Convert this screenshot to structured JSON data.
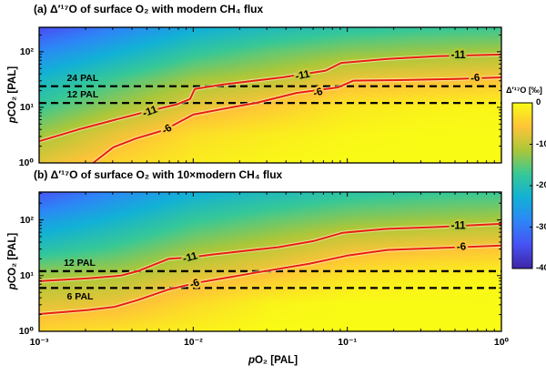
{
  "axis_labels": {
    "x_prefix": "p",
    "x_suffix": "O₂ [PAL]",
    "y_prefix": "p",
    "y_suffix": "CO₂ [PAL]"
  },
  "colors": {
    "contour_red": "#e8200c",
    "contour_halo": "#fff9d9",
    "ref_line_black": "#000000",
    "frame_black": "#000000",
    "background_white": "#ffffff"
  },
  "chart_data": [
    {
      "type": "heatmap",
      "panel_id": "a",
      "title": "(a) Δ′¹⁷O of surface O₂ with modern CH₄ flux",
      "xlabel": "pO₂ [PAL]",
      "ylabel": "pCO₂ [PAL]",
      "x_scale": "log",
      "y_scale": "log",
      "x_range_log10": [
        -3,
        0
      ],
      "y_range_log10": [
        0,
        2.44
      ],
      "x_tick_log10": [
        -3,
        -2,
        -1,
        0
      ],
      "x_tick_labels": [
        "10⁻³",
        "10⁻²",
        "10⁻¹",
        "10⁰"
      ],
      "x_tick_labels_visible": false,
      "y_tick_log10": [
        0,
        1,
        2
      ],
      "y_tick_labels": [
        "10⁰",
        "10¹",
        "10²"
      ],
      "field_grid": {
        "log10_pO2": [
          -3,
          -2.5,
          -2,
          -1.5,
          -1,
          -0.5,
          0
        ],
        "log10_pCO2": [
          0,
          0.5,
          1.0,
          1.5,
          2.0,
          2.44
        ],
        "delta17O_permil": [
          [
            -7.5,
            -4.0,
            -1.5,
            -0.5,
            0,
            0,
            0
          ],
          [
            -12.0,
            -7.0,
            -3.0,
            -1.5,
            -0.5,
            0,
            0
          ],
          [
            -17.0,
            -12.0,
            -7.5,
            -5.0,
            -2.0,
            -1.0,
            -0.5
          ],
          [
            -21.5,
            -16.5,
            -12.0,
            -10.0,
            -7.0,
            -6.3,
            -5.7
          ],
          [
            -28.0,
            -23.0,
            -18.0,
            -15.0,
            -13.0,
            -12.3,
            -11.6
          ],
          [
            -35.0,
            -29.0,
            -23.5,
            -20.5,
            -18.5,
            -17.5,
            -17.0
          ]
        ]
      },
      "contours": [
        {
          "level": -11,
          "label": "-11",
          "points_log10": [
            [
              -3.0,
              0.39
            ],
            [
              -2.72,
              0.62
            ],
            [
              -2.49,
              0.79
            ],
            [
              -2.29,
              0.93
            ],
            [
              -2.11,
              1.05
            ],
            [
              -2.02,
              1.15
            ],
            [
              -1.99,
              1.33
            ],
            [
              -1.81,
              1.41
            ],
            [
              -1.42,
              1.54
            ],
            [
              -1.14,
              1.66
            ],
            [
              -1.04,
              1.8
            ],
            [
              -0.74,
              1.87
            ],
            [
              -0.42,
              1.92
            ],
            [
              0.0,
              1.95
            ]
          ],
          "labels": [
            {
              "lx": -2.28,
              "e": 0.92,
              "rot_deg": -20
            },
            {
              "lx": -1.29,
              "e": 1.57,
              "rot_deg": -12
            },
            {
              "lx": -0.28,
              "e": 1.93,
              "rot_deg": 0
            }
          ]
        },
        {
          "level": -6,
          "label": "-6",
          "points_log10": [
            [
              -2.65,
              0.0
            ],
            [
              -2.52,
              0.28
            ],
            [
              -2.37,
              0.44
            ],
            [
              -2.19,
              0.59
            ],
            [
              -2.0,
              0.87
            ],
            [
              -1.81,
              0.97
            ],
            [
              -1.59,
              1.08
            ],
            [
              -1.33,
              1.26
            ],
            [
              -1.06,
              1.36
            ],
            [
              -0.96,
              1.48
            ],
            [
              -0.66,
              1.49
            ],
            [
              -0.3,
              1.51
            ],
            [
              0.0,
              1.54
            ]
          ],
          "labels": [
            {
              "lx": -2.17,
              "e": 0.6,
              "rot_deg": -30
            },
            {
              "lx": -1.19,
              "e": 1.26,
              "rot_deg": -18
            },
            {
              "lx": -0.17,
              "e": 1.52,
              "rot_deg": -6
            }
          ]
        }
      ],
      "ref_lines": [
        {
          "pCO2_PAL": 24,
          "label": "24 PAL",
          "label_lx": -2.82,
          "label_side": "above"
        },
        {
          "pCO2_PAL": 12,
          "label": "12 PAL",
          "label_lx": -2.82,
          "label_side": "above"
        }
      ]
    },
    {
      "type": "heatmap",
      "panel_id": "b",
      "title": "(b) Δ′¹⁷O of surface O₂ with 10×modern CH₄ flux",
      "xlabel": "pO₂ [PAL]",
      "ylabel": "pCO₂ [PAL]",
      "x_scale": "log",
      "y_scale": "log",
      "x_range_log10": [
        -3,
        0
      ],
      "y_range_log10": [
        0,
        2.5
      ],
      "x_tick_log10": [
        -3,
        -2,
        -1,
        0
      ],
      "x_tick_labels": [
        "10⁻³",
        "10⁻²",
        "10⁻¹",
        "10⁰"
      ],
      "x_tick_labels_visible": true,
      "y_tick_log10": [
        0,
        1,
        2
      ],
      "y_tick_labels": [
        "10⁰",
        "10¹",
        "10²"
      ],
      "field_grid": {
        "log10_pO2": [
          -3,
          -2.5,
          -2,
          -1.5,
          -1,
          -0.5,
          0
        ],
        "log10_pCO2": [
          0,
          0.5,
          1.0,
          1.5,
          2.0,
          2.5
        ],
        "delta17O_permil": [
          [
            -4.0,
            -2.5,
            -1.0,
            0,
            0,
            0,
            0
          ],
          [
            -8.0,
            -7.0,
            -3.5,
            -0.8,
            0,
            0,
            0
          ],
          [
            -12.0,
            -11.0,
            -8.0,
            -5.5,
            -2.5,
            -1.2,
            -0.6
          ],
          [
            -19.5,
            -16.5,
            -12.5,
            -10.0,
            -7.2,
            -6.3,
            -5.8
          ],
          [
            -26.0,
            -22.0,
            -17.5,
            -15.0,
            -13.0,
            -12.2,
            -11.5
          ],
          [
            -34.0,
            -28.0,
            -23.0,
            -20.5,
            -18.5,
            -17.5,
            -17.0
          ]
        ]
      },
      "contours": [
        {
          "level": -11,
          "label": "-11",
          "points_log10": [
            [
              -3.0,
              0.9
            ],
            [
              -2.69,
              0.95
            ],
            [
              -2.47,
              1.0
            ],
            [
              -2.36,
              1.08
            ],
            [
              -2.16,
              1.3
            ],
            [
              -2.01,
              1.33
            ],
            [
              -1.87,
              1.38
            ],
            [
              -1.45,
              1.51
            ],
            [
              -1.22,
              1.62
            ],
            [
              -1.03,
              1.77
            ],
            [
              -0.74,
              1.84
            ],
            [
              -0.45,
              1.87
            ],
            [
              0.0,
              1.93
            ]
          ],
          "labels": [
            {
              "lx": -2.02,
              "e": 1.32,
              "rot_deg": -15
            },
            {
              "lx": -0.28,
              "e": 1.89,
              "rot_deg": 0
            }
          ]
        },
        {
          "level": -6,
          "label": "-6",
          "points_log10": [
            [
              -3.0,
              0.31
            ],
            [
              -2.69,
              0.38
            ],
            [
              -2.51,
              0.44
            ],
            [
              -2.36,
              0.56
            ],
            [
              -2.16,
              0.75
            ],
            [
              -1.98,
              0.87
            ],
            [
              -1.81,
              0.95
            ],
            [
              -1.6,
              1.05
            ],
            [
              -1.25,
              1.21
            ],
            [
              -1.0,
              1.36
            ],
            [
              -0.74,
              1.46
            ],
            [
              -0.45,
              1.49
            ],
            [
              0.0,
              1.54
            ]
          ],
          "labels": [
            {
              "lx": -1.99,
              "e": 0.85,
              "rot_deg": -20
            },
            {
              "lx": -0.26,
              "e": 1.51,
              "rot_deg": -5
            }
          ]
        }
      ],
      "ref_lines": [
        {
          "pCO2_PAL": 12,
          "label": "12 PAL",
          "label_lx": -2.84,
          "label_side": "above"
        },
        {
          "pCO2_PAL": 6,
          "label": "6 PAL",
          "label_lx": -2.82,
          "label_side": "below"
        }
      ]
    },
    {
      "type": "colorbar",
      "label": "Δ′¹⁷O [‰]",
      "orientation": "vertical",
      "range": [
        -40,
        0
      ],
      "tick_values": [
        0,
        -10,
        -20,
        -30,
        -40
      ],
      "tick_labels": [
        "0",
        "-10",
        "-20",
        "-30",
        "-40"
      ],
      "colormap": "parula",
      "colormap_stops": [
        [
          0.0,
          "#3e26a8"
        ],
        [
          0.143,
          "#4753f4"
        ],
        [
          0.286,
          "#2d87f7"
        ],
        [
          0.429,
          "#12b1d6"
        ],
        [
          0.571,
          "#37c897"
        ],
        [
          0.714,
          "#abc739"
        ],
        [
          0.857,
          "#fec438"
        ],
        [
          1.0,
          "#f9fb15"
        ]
      ]
    }
  ]
}
